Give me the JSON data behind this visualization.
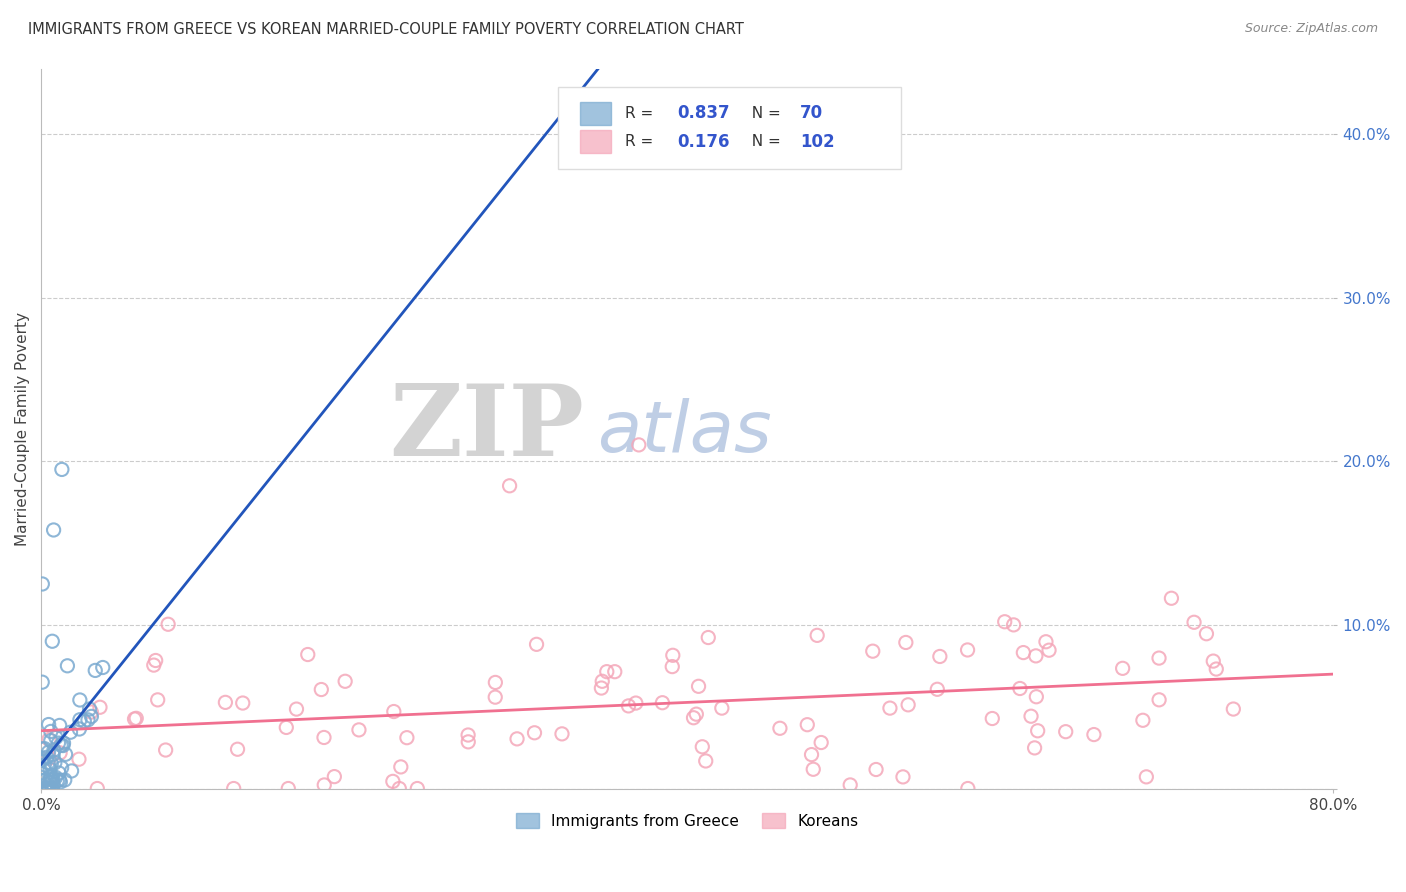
{
  "title": "IMMIGRANTS FROM GREECE VS KOREAN MARRIED-COUPLE FAMILY POVERTY CORRELATION CHART",
  "source": "Source: ZipAtlas.com",
  "xlabel": "",
  "ylabel": "Married-Couple Family Poverty",
  "xlim": [
    0.0,
    0.8
  ],
  "ylim": [
    0.0,
    0.44
  ],
  "xticks": [
    0.0,
    0.8
  ],
  "xticklabels": [
    "0.0%",
    "80.0%"
  ],
  "yticks": [
    0.0,
    0.1,
    0.2,
    0.3,
    0.4
  ],
  "yticklabels": [
    "",
    "10.0%",
    "20.0%",
    "30.0%",
    "40.0%"
  ],
  "greece_color": "#7AAAD0",
  "korea_color": "#F4A7B9",
  "trendline_blue": "#2255BB",
  "trendline_pink": "#F07090",
  "R_greece": 0.837,
  "N_greece": 70,
  "R_korea": 0.176,
  "N_korea": 102,
  "legend_label_greece": "Immigrants from Greece",
  "legend_label_korea": "Koreans",
  "watermark_zip": "ZIP",
  "watermark_atlas": "atlas",
  "background_color": "#FFFFFF",
  "grid_color": "#CCCCCC",
  "legend_text_color": "#3355CC",
  "ytick_color": "#4477CC"
}
